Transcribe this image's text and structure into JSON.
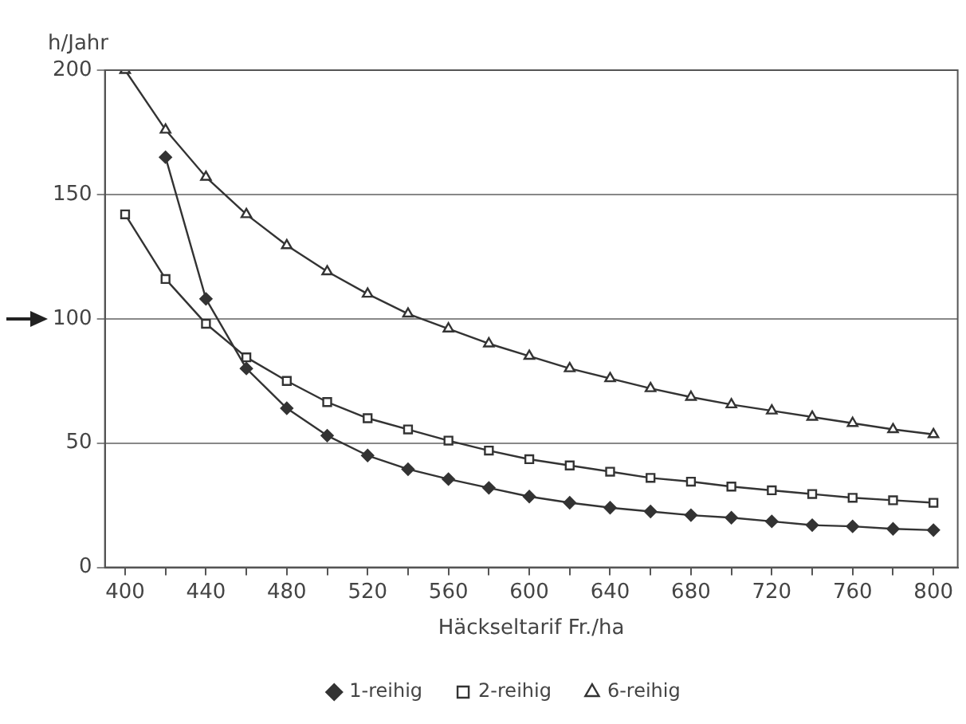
{
  "chart_data": {
    "type": "line",
    "xlabel": "Häckseltarif Fr./ha",
    "ylabel": "h/Jahr",
    "x": [
      400,
      420,
      440,
      460,
      480,
      500,
      520,
      540,
      560,
      580,
      600,
      620,
      640,
      660,
      680,
      700,
      720,
      740,
      760,
      780,
      800
    ],
    "series": [
      {
        "name": "1-reihig",
        "color": "#333333",
        "marker": "diamond",
        "values": [
          null,
          165,
          108,
          80,
          64,
          53,
          45,
          39.5,
          35.5,
          32,
          28.5,
          26,
          24,
          22.5,
          21,
          20,
          18.5,
          17,
          16.5,
          15.5,
          15
        ]
      },
      {
        "name": "2-reihig",
        "color": "#333333",
        "marker": "square",
        "values": [
          142,
          116,
          98,
          84.5,
          75,
          66.5,
          60,
          55.5,
          51,
          47,
          43.5,
          41,
          38.5,
          36,
          34.5,
          32.5,
          31,
          29.5,
          28,
          27,
          26
        ]
      },
      {
        "name": "6-reihig",
        "color": "#333333",
        "marker": "triangle",
        "values": [
          200,
          176,
          157,
          142,
          129.5,
          119,
          110,
          102,
          96,
          90,
          85,
          80,
          76,
          72,
          68.5,
          65.5,
          63,
          60.5,
          58,
          55.5,
          53.5
        ]
      }
    ],
    "xlim": [
      390,
      812
    ],
    "xticks": [
      400,
      {
        "value": 420,
        "label": null
      },
      440,
      {
        "value": 460,
        "label": null
      },
      480,
      {
        "value": 500,
        "label": null
      },
      520,
      {
        "value": 540,
        "label": null
      },
      560,
      {
        "value": 580,
        "label": null
      },
      600,
      {
        "value": 620,
        "label": null
      },
      640,
      {
        "value": 660,
        "label": null
      },
      680,
      {
        "value": 700,
        "label": null
      },
      720,
      {
        "value": 740,
        "label": null
      },
      760,
      {
        "value": 780,
        "label": null
      },
      800
    ],
    "ylim": [
      0,
      200
    ],
    "yticks": [
      0,
      50,
      100,
      150,
      200
    ],
    "grid": "y",
    "legend": "bottom",
    "line_style": "solid"
  }
}
